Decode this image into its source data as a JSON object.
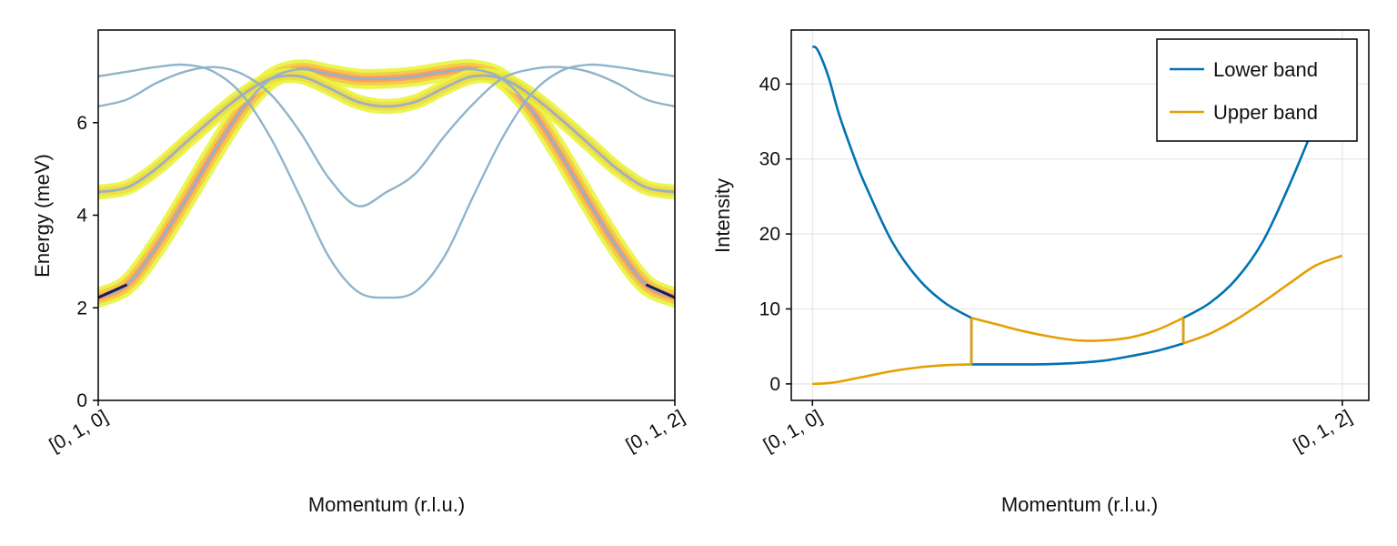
{
  "colors": {
    "dispersion_line": "#8fb4cb",
    "lower_band": "#0072b2",
    "upper_band": "#e69f00",
    "grid": "#e6e6e6",
    "intensity_low": "#e8f53c",
    "intensity_mid": "#f99a6a",
    "intensity_high": "#1a1a4e"
  },
  "chart_data": [
    {
      "type": "line",
      "title": "",
      "xlabel": "Momentum (r.l.u.)",
      "ylabel": "Energy (meV)",
      "xticks": [
        "[0, 1, 0]",
        "[0, 1, 2]"
      ],
      "yticks": [
        0,
        2,
        4,
        6
      ],
      "xlim": [
        0,
        1
      ],
      "ylim": [
        0,
        8
      ],
      "grid": false,
      "legend": null,
      "series": [
        {
          "x": [
            0,
            0.05,
            0.1,
            0.15,
            0.2,
            0.25,
            0.3,
            0.35,
            0.4,
            0.45,
            0.5,
            0.55,
            0.6,
            0.65,
            0.7,
            0.75,
            0.8,
            0.85,
            0.9,
            0.95,
            1
          ],
          "y": [
            2.22,
            2.5,
            3.3,
            4.3,
            5.35,
            6.3,
            6.95,
            7.15,
            7.05,
            6.95,
            6.95,
            7.0,
            7.1,
            7.15,
            6.95,
            6.3,
            5.35,
            4.3,
            3.3,
            2.5,
            2.22
          ],
          "intensity": 1.0
        },
        {
          "x": [
            0,
            0.05,
            0.1,
            0.15,
            0.2,
            0.25,
            0.3,
            0.35,
            0.4,
            0.45,
            0.5,
            0.55,
            0.6,
            0.65,
            0.7,
            0.75,
            0.8,
            0.85,
            0.9,
            0.95,
            1
          ],
          "y": [
            4.5,
            4.6,
            5.0,
            5.55,
            6.1,
            6.6,
            6.95,
            7.0,
            6.75,
            6.45,
            6.35,
            6.45,
            6.75,
            7.0,
            6.95,
            6.6,
            6.1,
            5.55,
            5.0,
            4.6,
            4.5
          ],
          "intensity": 0.5
        },
        {
          "x": [
            0,
            0.05,
            0.1,
            0.15,
            0.2,
            0.25,
            0.3,
            0.35,
            0.4,
            0.45,
            0.5,
            0.55,
            0.6,
            0.65,
            0.7,
            0.75,
            0.8,
            0.85,
            0.9,
            0.95,
            1
          ],
          "y": [
            6.35,
            6.5,
            6.85,
            7.1,
            7.2,
            7.05,
            6.6,
            5.8,
            4.8,
            4.2,
            4.5,
            4.9,
            5.7,
            6.4,
            6.95,
            7.15,
            7.2,
            7.1,
            6.85,
            6.5,
            6.35
          ],
          "intensity": 0
        },
        {
          "x": [
            0,
            0.05,
            0.1,
            0.15,
            0.2,
            0.25,
            0.3,
            0.35,
            0.4,
            0.45,
            0.5,
            0.55,
            0.6,
            0.65,
            0.7,
            0.75,
            0.8,
            0.85,
            0.9,
            0.95,
            1
          ],
          "y": [
            7.0,
            7.1,
            7.2,
            7.25,
            7.1,
            6.6,
            5.65,
            4.4,
            3.1,
            2.35,
            2.22,
            2.35,
            3.1,
            4.4,
            5.65,
            6.6,
            7.1,
            7.25,
            7.2,
            7.1,
            7.0
          ],
          "intensity": 0
        }
      ]
    },
    {
      "type": "line",
      "title": "",
      "xlabel": "Momentum (r.l.u.)",
      "ylabel": "Intensity",
      "xticks": [
        "[0, 1, 0]",
        "[0, 1, 2]"
      ],
      "yticks": [
        0,
        10,
        20,
        30,
        40
      ],
      "xlim": [
        -0.04,
        1.05
      ],
      "ylim": [
        -2.2,
        47.2
      ],
      "grid": true,
      "legend": "top-right",
      "series": [
        {
          "name": "Lower band",
          "x": [
            0,
            0.01,
            0.03,
            0.05,
            0.08,
            0.1,
            0.15,
            0.2,
            0.25,
            0.3,
            0.3,
            0.35,
            0.4,
            0.45,
            0.5,
            0.55,
            0.6,
            0.65,
            0.7,
            0.7,
            0.75,
            0.8,
            0.85,
            0.9,
            0.95,
            1.0
          ],
          "y": [
            45,
            44.5,
            41,
            36,
            30,
            26.5,
            19,
            14,
            10.8,
            8.8,
            2.6,
            2.6,
            2.6,
            2.65,
            2.8,
            3.1,
            3.7,
            4.4,
            5.4,
            8.8,
            10.8,
            14,
            19,
            26.5,
            35,
            44
          ]
        },
        {
          "name": "Upper band",
          "x": [
            0,
            0.03,
            0.05,
            0.1,
            0.15,
            0.2,
            0.25,
            0.3,
            0.3,
            0.35,
            0.4,
            0.45,
            0.5,
            0.55,
            0.6,
            0.65,
            0.7,
            0.7,
            0.75,
            0.8,
            0.85,
            0.9,
            0.95,
            1.0
          ],
          "y": [
            0,
            0.1,
            0.3,
            1.0,
            1.7,
            2.2,
            2.5,
            2.6,
            8.8,
            7.9,
            7.0,
            6.3,
            5.8,
            5.8,
            6.2,
            7.2,
            8.8,
            5.4,
            6.7,
            8.6,
            10.9,
            13.4,
            15.8,
            17.1
          ]
        }
      ]
    }
  ]
}
